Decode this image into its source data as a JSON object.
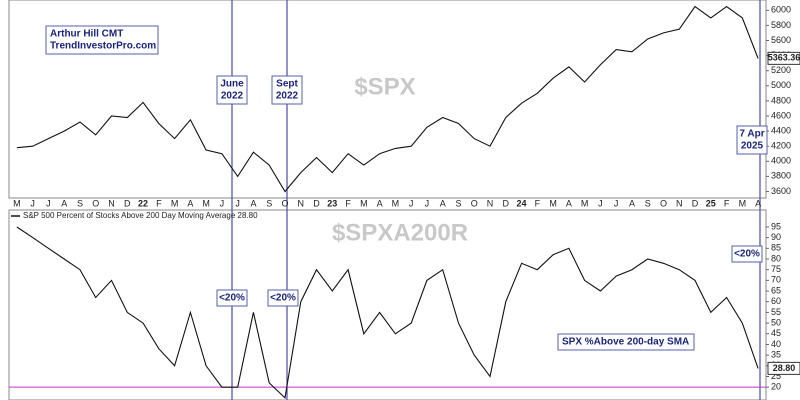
{
  "chart_data": [
    {
      "type": "line",
      "title": "$SPX",
      "color": "#111111",
      "categories": [
        "M",
        "J",
        "J",
        "A",
        "S",
        "O",
        "N",
        "D",
        "22",
        "F",
        "M",
        "A",
        "M",
        "J",
        "J",
        "A",
        "S",
        "O",
        "N",
        "D",
        "23",
        "F",
        "M",
        "A",
        "M",
        "J",
        "J",
        "A",
        "S",
        "O",
        "N",
        "D",
        "24",
        "F",
        "M",
        "A",
        "M",
        "J",
        "J",
        "A",
        "S",
        "O",
        "N",
        "D",
        "25",
        "F",
        "M",
        "A"
      ],
      "values": [
        4180,
        4200,
        4300,
        4400,
        4520,
        4350,
        4600,
        4580,
        4780,
        4500,
        4300,
        4550,
        4150,
        4100,
        3800,
        4120,
        3950,
        3600,
        3850,
        4050,
        3850,
        4100,
        3950,
        4100,
        4170,
        4200,
        4450,
        4580,
        4500,
        4300,
        4200,
        4580,
        4770,
        4900,
        5100,
        5250,
        5050,
        5280,
        5480,
        5450,
        5620,
        5700,
        5750,
        6050,
        5900,
        6050,
        5900,
        5363.36
      ],
      "value_labels": [
        null,
        null,
        null,
        null,
        null,
        null,
        null,
        null,
        null,
        null,
        null,
        null,
        null,
        null,
        null,
        null,
        null,
        null,
        null,
        null,
        null,
        null,
        null,
        null,
        null,
        null,
        null,
        null,
        null,
        null,
        null,
        null,
        null,
        null,
        null,
        null,
        null,
        null,
        null,
        null,
        null,
        null,
        null,
        null,
        null,
        null,
        null,
        "5363.36"
      ],
      "ylim": [
        3540,
        6110
      ],
      "yticks": [
        3600,
        3800,
        4000,
        4200,
        4400,
        4600,
        4800,
        5000,
        5200,
        5400,
        5600,
        5800,
        6000
      ],
      "grid": false,
      "annotations": [
        {
          "lines": [
            "Arthur Hill CMT",
            "TrendInvestorPro.com"
          ]
        },
        {
          "lines": [
            "June",
            "2022"
          ]
        },
        {
          "lines": [
            "Sept",
            "2022"
          ]
        },
        {
          "lines": [
            "7 Apr",
            "2025"
          ]
        }
      ]
    },
    {
      "type": "line",
      "title": "$SPXA200R",
      "color": "#111111",
      "legend": "S&P 500 Percent of Stocks Above 200 Day Moving Average 28.80",
      "values": [
        95,
        90,
        85,
        80,
        75,
        62,
        70,
        55,
        50,
        38,
        30,
        55,
        30,
        20,
        20,
        55,
        22,
        15,
        60,
        75,
        65,
        75,
        45,
        55,
        45,
        50,
        70,
        75,
        50,
        35,
        25,
        60,
        78,
        75,
        82,
        85,
        70,
        65,
        72,
        75,
        80,
        78,
        75,
        70,
        55,
        62,
        50,
        28.8
      ],
      "value_labels": [
        null,
        null,
        null,
        null,
        null,
        null,
        null,
        null,
        null,
        null,
        null,
        null,
        null,
        null,
        null,
        null,
        null,
        null,
        null,
        null,
        null,
        null,
        null,
        null,
        null,
        null,
        null,
        null,
        null,
        null,
        null,
        null,
        null,
        null,
        null,
        null,
        null,
        null,
        null,
        null,
        null,
        null,
        null,
        null,
        null,
        null,
        null,
        "28.80"
      ],
      "ylim": [
        14,
        102
      ],
      "yticks": [
        20,
        25,
        30,
        35,
        40,
        45,
        50,
        55,
        60,
        65,
        70,
        75,
        80,
        85,
        90,
        95
      ],
      "grid": false,
      "hline": 20,
      "hline_color": "#cc33cc",
      "annotations": [
        {
          "lines": [
            "<20%"
          ]
        },
        {
          "lines": [
            "<20%"
          ]
        },
        {
          "lines": [
            "<20%"
          ]
        },
        {
          "lines": [
            "SPX %Above 200-day SMA"
          ]
        }
      ]
    }
  ]
}
